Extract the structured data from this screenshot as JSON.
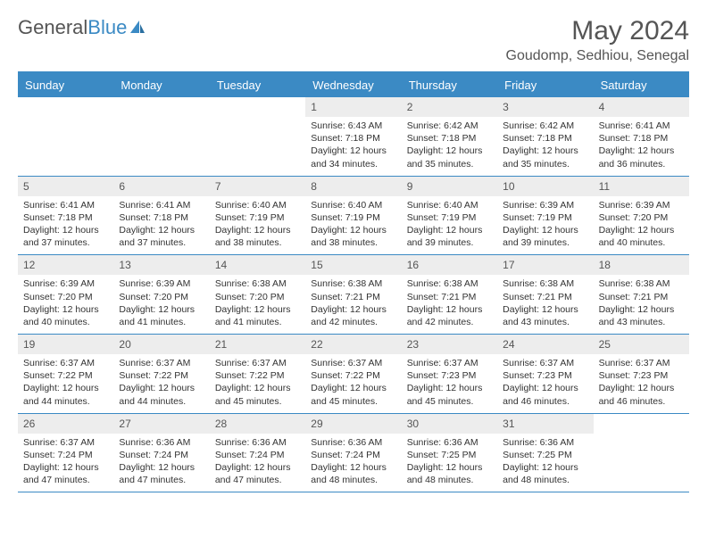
{
  "brand": {
    "name_part1": "General",
    "name_part2": "Blue"
  },
  "title": "May 2024",
  "location": "Goudomp, Sedhiou, Senegal",
  "weekdays": [
    "Sunday",
    "Monday",
    "Tuesday",
    "Wednesday",
    "Thursday",
    "Friday",
    "Saturday"
  ],
  "colors": {
    "accent": "#3b8ac4",
    "daynum_bg": "#ededed",
    "text": "#333333",
    "heading": "#555555"
  },
  "grid": {
    "cols": 7,
    "rows": 5
  },
  "days": [
    {
      "num": "",
      "sunrise": "",
      "sunset": "",
      "daylight": ""
    },
    {
      "num": "",
      "sunrise": "",
      "sunset": "",
      "daylight": ""
    },
    {
      "num": "",
      "sunrise": "",
      "sunset": "",
      "daylight": ""
    },
    {
      "num": "1",
      "sunrise": "6:43 AM",
      "sunset": "7:18 PM",
      "daylight": "12 hours and 34 minutes."
    },
    {
      "num": "2",
      "sunrise": "6:42 AM",
      "sunset": "7:18 PM",
      "daylight": "12 hours and 35 minutes."
    },
    {
      "num": "3",
      "sunrise": "6:42 AM",
      "sunset": "7:18 PM",
      "daylight": "12 hours and 35 minutes."
    },
    {
      "num": "4",
      "sunrise": "6:41 AM",
      "sunset": "7:18 PM",
      "daylight": "12 hours and 36 minutes."
    },
    {
      "num": "5",
      "sunrise": "6:41 AM",
      "sunset": "7:18 PM",
      "daylight": "12 hours and 37 minutes."
    },
    {
      "num": "6",
      "sunrise": "6:41 AM",
      "sunset": "7:18 PM",
      "daylight": "12 hours and 37 minutes."
    },
    {
      "num": "7",
      "sunrise": "6:40 AM",
      "sunset": "7:19 PM",
      "daylight": "12 hours and 38 minutes."
    },
    {
      "num": "8",
      "sunrise": "6:40 AM",
      "sunset": "7:19 PM",
      "daylight": "12 hours and 38 minutes."
    },
    {
      "num": "9",
      "sunrise": "6:40 AM",
      "sunset": "7:19 PM",
      "daylight": "12 hours and 39 minutes."
    },
    {
      "num": "10",
      "sunrise": "6:39 AM",
      "sunset": "7:19 PM",
      "daylight": "12 hours and 39 minutes."
    },
    {
      "num": "11",
      "sunrise": "6:39 AM",
      "sunset": "7:20 PM",
      "daylight": "12 hours and 40 minutes."
    },
    {
      "num": "12",
      "sunrise": "6:39 AM",
      "sunset": "7:20 PM",
      "daylight": "12 hours and 40 minutes."
    },
    {
      "num": "13",
      "sunrise": "6:39 AM",
      "sunset": "7:20 PM",
      "daylight": "12 hours and 41 minutes."
    },
    {
      "num": "14",
      "sunrise": "6:38 AM",
      "sunset": "7:20 PM",
      "daylight": "12 hours and 41 minutes."
    },
    {
      "num": "15",
      "sunrise": "6:38 AM",
      "sunset": "7:21 PM",
      "daylight": "12 hours and 42 minutes."
    },
    {
      "num": "16",
      "sunrise": "6:38 AM",
      "sunset": "7:21 PM",
      "daylight": "12 hours and 42 minutes."
    },
    {
      "num": "17",
      "sunrise": "6:38 AM",
      "sunset": "7:21 PM",
      "daylight": "12 hours and 43 minutes."
    },
    {
      "num": "18",
      "sunrise": "6:38 AM",
      "sunset": "7:21 PM",
      "daylight": "12 hours and 43 minutes."
    },
    {
      "num": "19",
      "sunrise": "6:37 AM",
      "sunset": "7:22 PM",
      "daylight": "12 hours and 44 minutes."
    },
    {
      "num": "20",
      "sunrise": "6:37 AM",
      "sunset": "7:22 PM",
      "daylight": "12 hours and 44 minutes."
    },
    {
      "num": "21",
      "sunrise": "6:37 AM",
      "sunset": "7:22 PM",
      "daylight": "12 hours and 45 minutes."
    },
    {
      "num": "22",
      "sunrise": "6:37 AM",
      "sunset": "7:22 PM",
      "daylight": "12 hours and 45 minutes."
    },
    {
      "num": "23",
      "sunrise": "6:37 AM",
      "sunset": "7:23 PM",
      "daylight": "12 hours and 45 minutes."
    },
    {
      "num": "24",
      "sunrise": "6:37 AM",
      "sunset": "7:23 PM",
      "daylight": "12 hours and 46 minutes."
    },
    {
      "num": "25",
      "sunrise": "6:37 AM",
      "sunset": "7:23 PM",
      "daylight": "12 hours and 46 minutes."
    },
    {
      "num": "26",
      "sunrise": "6:37 AM",
      "sunset": "7:24 PM",
      "daylight": "12 hours and 47 minutes."
    },
    {
      "num": "27",
      "sunrise": "6:36 AM",
      "sunset": "7:24 PM",
      "daylight": "12 hours and 47 minutes."
    },
    {
      "num": "28",
      "sunrise": "6:36 AM",
      "sunset": "7:24 PM",
      "daylight": "12 hours and 47 minutes."
    },
    {
      "num": "29",
      "sunrise": "6:36 AM",
      "sunset": "7:24 PM",
      "daylight": "12 hours and 48 minutes."
    },
    {
      "num": "30",
      "sunrise": "6:36 AM",
      "sunset": "7:25 PM",
      "daylight": "12 hours and 48 minutes."
    },
    {
      "num": "31",
      "sunrise": "6:36 AM",
      "sunset": "7:25 PM",
      "daylight": "12 hours and 48 minutes."
    },
    {
      "num": "",
      "sunrise": "",
      "sunset": "",
      "daylight": ""
    }
  ]
}
